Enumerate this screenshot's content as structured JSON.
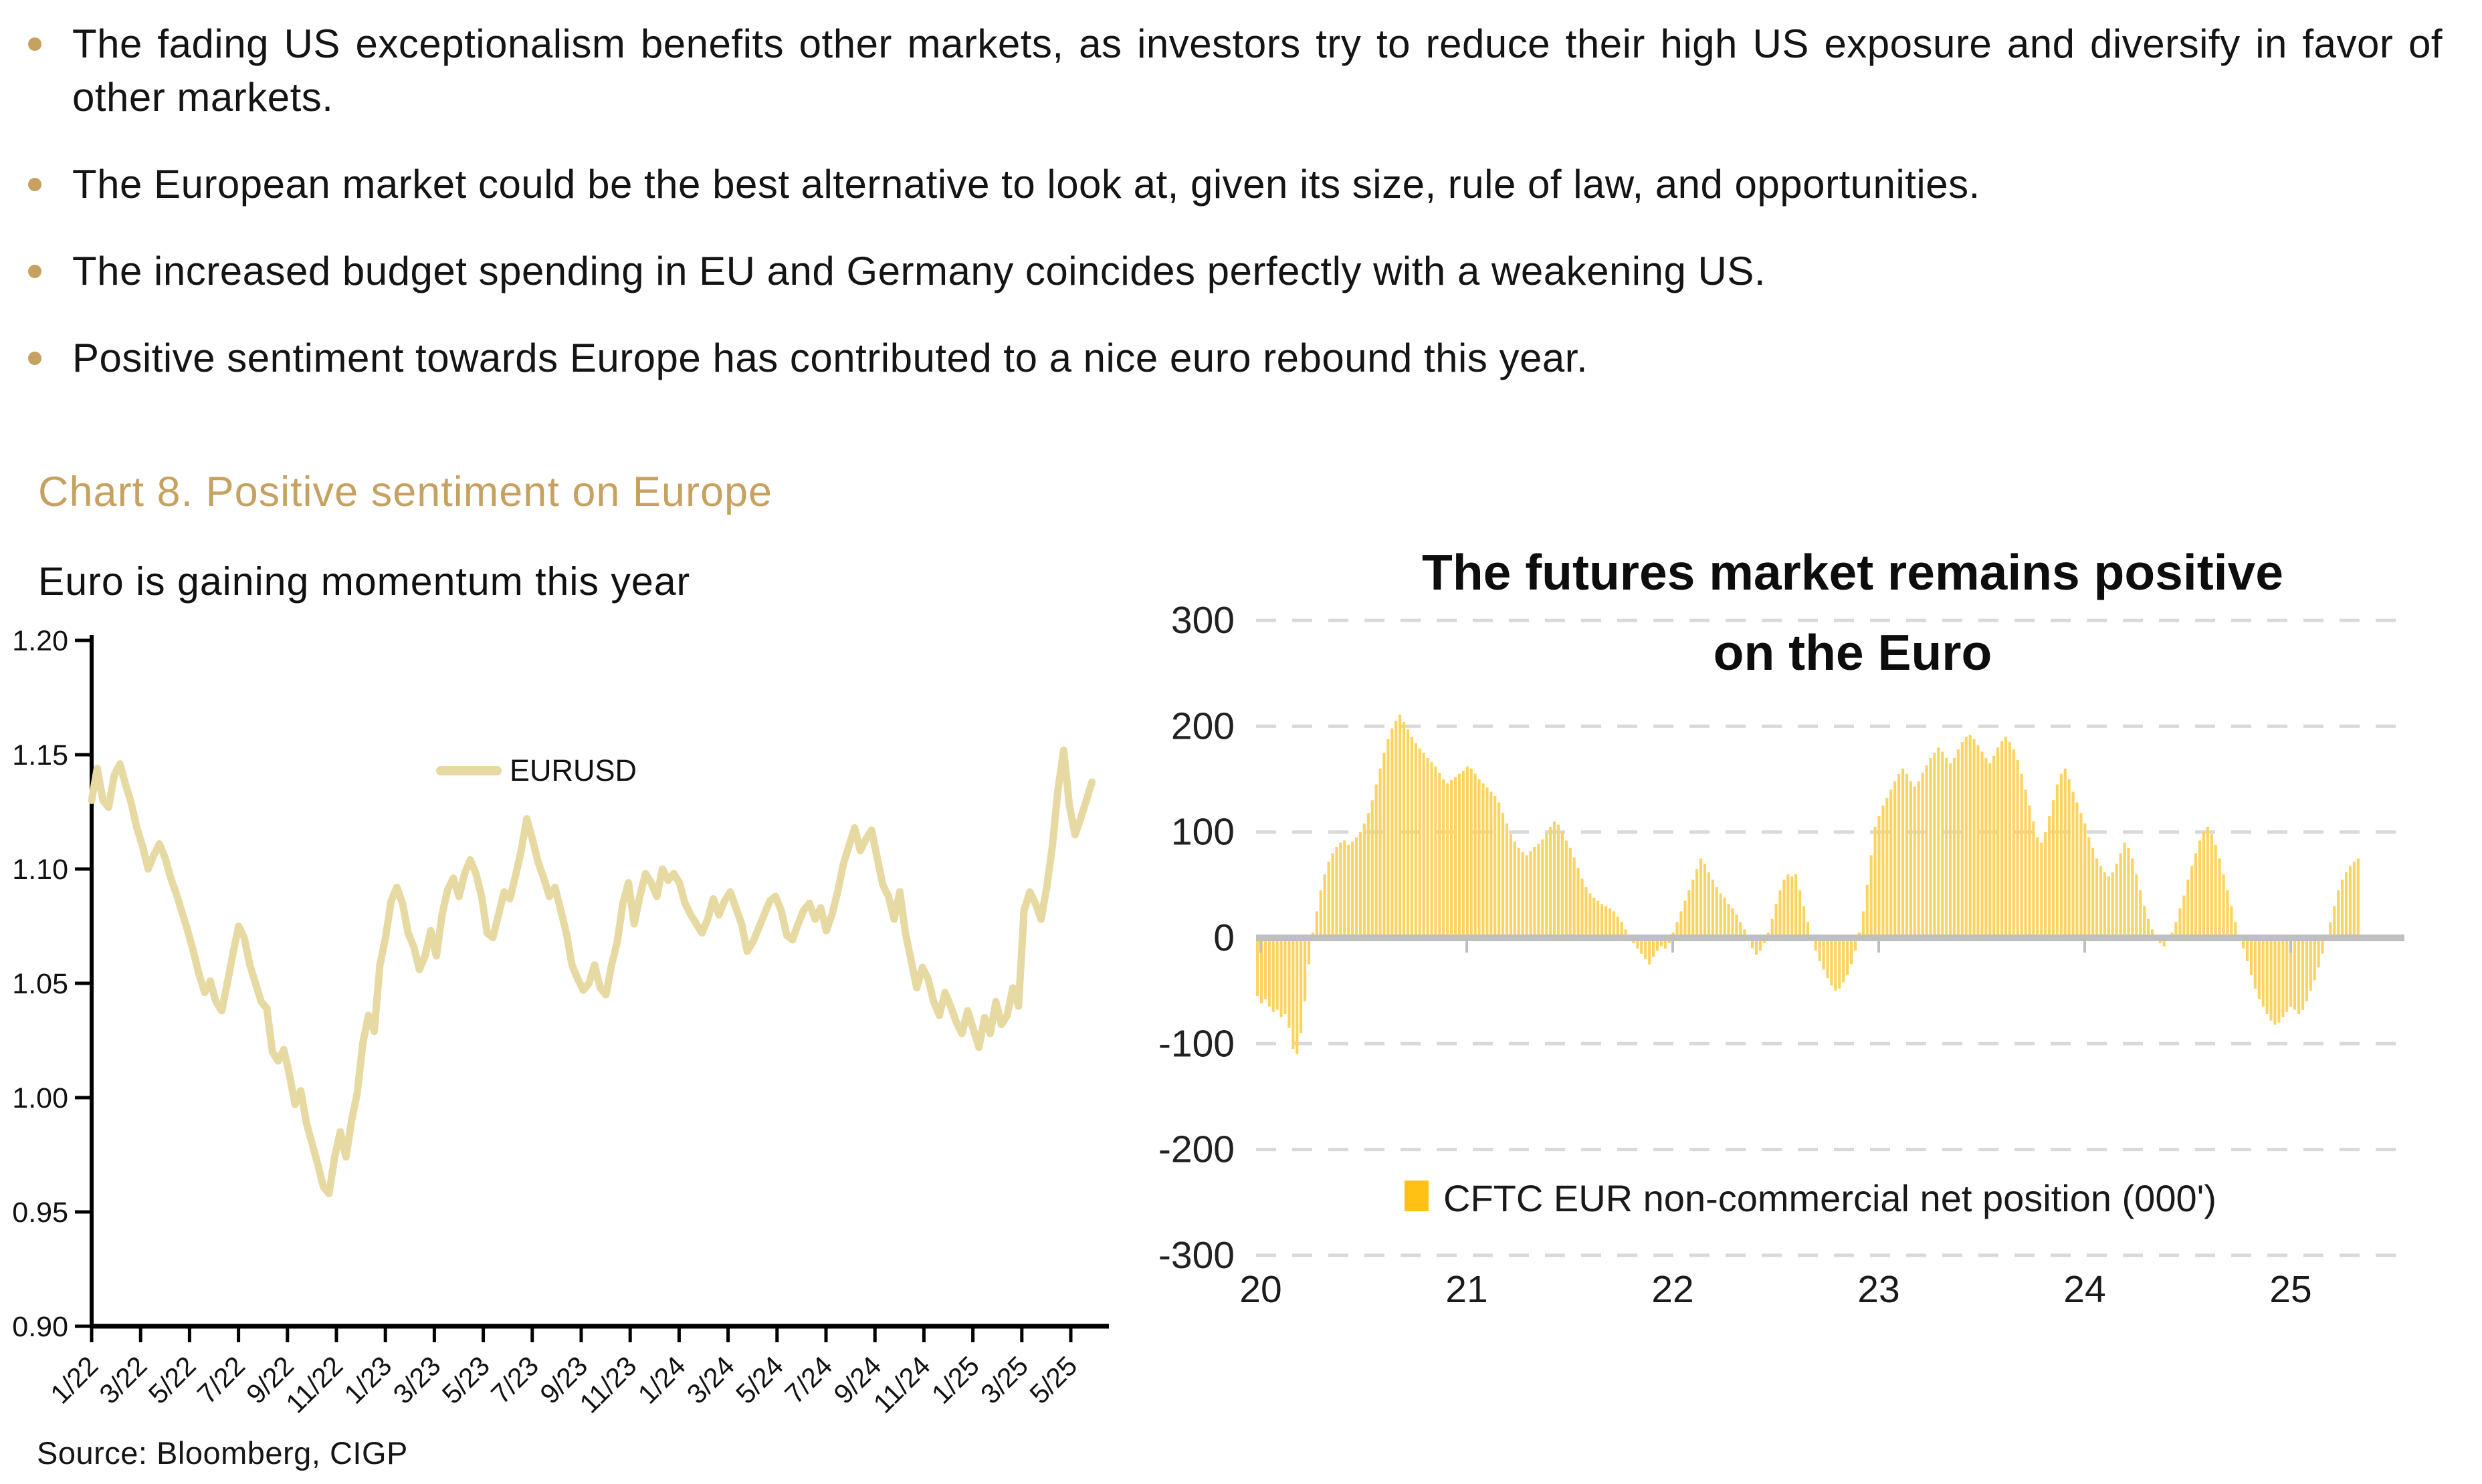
{
  "accent_gold": "#C6A160",
  "bullets": {
    "items": [
      {
        "text": "The fading US exceptionalism benefits other markets, as investors try to reduce their high US exposure and diversify in favor of other markets."
      },
      {
        "text": "The European market could be the best alternative to look at, given its size, rule of law, and opportunities."
      },
      {
        "text": "The increased budget spending in EU and Germany coincides perfectly with a weakening US."
      },
      {
        "text": "Positive sentiment towards Europe has contributed to a nice euro rebound this year."
      }
    ]
  },
  "section": {
    "heading": "Chart 8. Positive sentiment on Europe"
  },
  "source": "Source: Bloomberg, CIGP",
  "chart_data": [
    {
      "type": "line",
      "title": "Euro is gaining momentum this year",
      "series": [
        {
          "name": "EURUSD"
        }
      ],
      "line_color": "#E7D9A2",
      "ylim": [
        0.9,
        1.2
      ],
      "ytick_labels": [
        "1.20",
        "1.15",
        "1.10",
        "1.05",
        "1.00",
        "0.95",
        "0.90"
      ],
      "xtick_labels": [
        "1/22",
        "3/22",
        "5/22",
        "7/22",
        "9/22",
        "11/22",
        "1/23",
        "3/23",
        "5/23",
        "7/23",
        "9/23",
        "11/23",
        "1/24",
        "3/24",
        "5/24",
        "7/24",
        "9/24",
        "11/24",
        "1/25",
        "3/25",
        "5/25"
      ],
      "x_unit": "weekly from Jan 2022 to May 2025",
      "grid": false,
      "legend_position": "inside-top-center",
      "values": [
        1.13,
        1.144,
        1.13,
        1.127,
        1.141,
        1.146,
        1.137,
        1.129,
        1.118,
        1.11,
        1.1,
        1.106,
        1.111,
        1.105,
        1.096,
        1.089,
        1.081,
        1.073,
        1.064,
        1.054,
        1.046,
        1.051,
        1.042,
        1.038,
        1.05,
        1.063,
        1.075,
        1.07,
        1.058,
        1.05,
        1.042,
        1.039,
        1.02,
        1.016,
        1.021,
        1.01,
        0.997,
        1.003,
        0.989,
        0.98,
        0.971,
        0.961,
        0.958,
        0.974,
        0.985,
        0.974,
        0.99,
        1.002,
        1.024,
        1.036,
        1.029,
        1.058,
        1.07,
        1.086,
        1.092,
        1.085,
        1.072,
        1.066,
        1.056,
        1.062,
        1.073,
        1.062,
        1.08,
        1.091,
        1.096,
        1.088,
        1.098,
        1.104,
        1.098,
        1.088,
        1.072,
        1.07,
        1.08,
        1.09,
        1.087,
        1.097,
        1.108,
        1.122,
        1.113,
        1.103,
        1.096,
        1.088,
        1.092,
        1.082,
        1.072,
        1.058,
        1.052,
        1.047,
        1.05,
        1.058,
        1.048,
        1.045,
        1.058,
        1.068,
        1.085,
        1.094,
        1.076,
        1.088,
        1.098,
        1.094,
        1.088,
        1.1,
        1.095,
        1.098,
        1.094,
        1.085,
        1.08,
        1.076,
        1.072,
        1.078,
        1.087,
        1.08,
        1.086,
        1.09,
        1.083,
        1.076,
        1.064,
        1.068,
        1.074,
        1.08,
        1.086,
        1.088,
        1.082,
        1.071,
        1.069,
        1.076,
        1.082,
        1.085,
        1.078,
        1.083,
        1.073,
        1.08,
        1.09,
        1.102,
        1.11,
        1.118,
        1.108,
        1.113,
        1.117,
        1.105,
        1.093,
        1.088,
        1.078,
        1.09,
        1.072,
        1.06,
        1.048,
        1.057,
        1.052,
        1.042,
        1.036,
        1.046,
        1.04,
        1.033,
        1.028,
        1.038,
        1.03,
        1.022,
        1.035,
        1.028,
        1.042,
        1.032,
        1.036,
        1.048,
        1.04,
        1.082,
        1.09,
        1.085,
        1.078,
        1.092,
        1.11,
        1.135,
        1.152,
        1.128,
        1.115,
        1.122,
        1.13,
        1.138
      ]
    },
    {
      "type": "bar",
      "title_lines": [
        "The futures market remains positive",
        "on the Euro"
      ],
      "legend": "CFTC EUR non-commercial net position (000')",
      "bar_color": "#FBD35E",
      "legend_swatch_color": "#FFC113",
      "ylim": [
        -300,
        300
      ],
      "ytick_labels": [
        "300",
        "200",
        "100",
        "0",
        "-100",
        "-200",
        "-300"
      ],
      "yticks": [
        300,
        200,
        100,
        0,
        -100,
        -200,
        -300
      ],
      "xtick_labels": [
        "20",
        "21",
        "22",
        "23",
        "24",
        "25"
      ],
      "x_unit": "weekly from Jan 2020 to May 2025",
      "grid": "dashed horizontal",
      "values": [
        -55,
        -62,
        -58,
        -65,
        -70,
        -68,
        -75,
        -72,
        -85,
        -105,
        -110,
        -90,
        -60,
        -25,
        5,
        25,
        45,
        60,
        72,
        80,
        86,
        90,
        92,
        88,
        91,
        95,
        100,
        108,
        118,
        130,
        145,
        160,
        175,
        188,
        198,
        205,
        211,
        204,
        197,
        190,
        184,
        179,
        175,
        170,
        166,
        162,
        156,
        150,
        146,
        149,
        152,
        155,
        158,
        162,
        160,
        155,
        150,
        146,
        142,
        138,
        134,
        128,
        118,
        108,
        98,
        91,
        85,
        81,
        78,
        82,
        86,
        89,
        93,
        99,
        105,
        110,
        107,
        100,
        92,
        85,
        76,
        66,
        56,
        48,
        42,
        38,
        35,
        32,
        30,
        28,
        25,
        20,
        15,
        8,
        2,
        -5,
        -10,
        -15,
        -20,
        -25,
        -18,
        -12,
        -8,
        -10,
        -5,
        5,
        15,
        25,
        35,
        45,
        55,
        65,
        75,
        70,
        62,
        55,
        48,
        42,
        38,
        32,
        28,
        22,
        15,
        8,
        -2,
        -10,
        -16,
        -12,
        -5,
        5,
        18,
        32,
        45,
        55,
        60,
        58,
        60,
        45,
        30,
        15,
        0,
        -12,
        -22,
        -30,
        -38,
        -45,
        -50,
        -48,
        -42,
        -35,
        -25,
        -12,
        5,
        25,
        50,
        78,
        105,
        115,
        125,
        132,
        140,
        148,
        155,
        160,
        155,
        148,
        143,
        148,
        156,
        163,
        170,
        175,
        180,
        176,
        170,
        165,
        170,
        178,
        185,
        190,
        192,
        188,
        182,
        176,
        170,
        165,
        172,
        180,
        186,
        190,
        185,
        178,
        168,
        155,
        140,
        125,
        110,
        95,
        90,
        100,
        115,
        130,
        145,
        155,
        160,
        150,
        138,
        128,
        118,
        108,
        95,
        85,
        75,
        68,
        62,
        58,
        62,
        70,
        80,
        90,
        85,
        75,
        60,
        45,
        30,
        18,
        8,
        0,
        -5,
        -8,
        -3,
        5,
        15,
        28,
        40,
        55,
        68,
        80,
        92,
        100,
        105,
        98,
        88,
        75,
        60,
        45,
        30,
        15,
        2,
        -10,
        -22,
        -35,
        -48,
        -58,
        -65,
        -72,
        -78,
        -82,
        -80,
        -75,
        -70,
        -65,
        -68,
        -72,
        -68,
        -60,
        -50,
        -40,
        -28,
        -15,
        0,
        15,
        30,
        45,
        55,
        62,
        68,
        72,
        75
      ]
    }
  ]
}
